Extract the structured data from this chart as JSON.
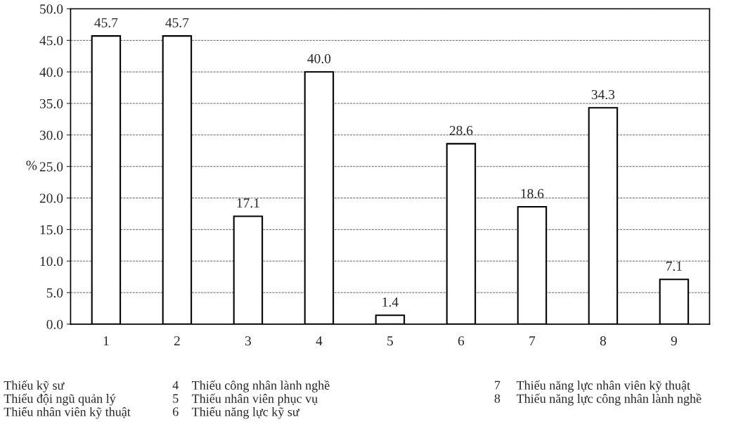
{
  "chart_data": {
    "type": "bar",
    "ylabel": "%",
    "categories": [
      "1",
      "2",
      "3",
      "4",
      "5",
      "6",
      "7",
      "8",
      "9"
    ],
    "values": [
      45.7,
      45.7,
      17.1,
      40.0,
      1.4,
      28.6,
      18.6,
      34.3,
      7.1
    ],
    "value_labels": [
      "45.7",
      "45.7",
      "17.1",
      "40.0",
      "1.4",
      "28.6",
      "18.6",
      "34.3",
      "7.1"
    ],
    "color": "#ffffff",
    "ylim": [
      0,
      50
    ],
    "yticks": [
      {
        "value": 0,
        "label": "0.0"
      },
      {
        "value": 5,
        "label": "5.0"
      },
      {
        "value": 10,
        "label": "10.0"
      },
      {
        "value": 15,
        "label": "15.0"
      },
      {
        "value": 20,
        "label": "20.0"
      },
      {
        "value": 25,
        "label": "25.0"
      },
      {
        "value": 30,
        "label": "30.0"
      },
      {
        "value": 35,
        "label": "35.0"
      },
      {
        "value": 40,
        "label": "40.0"
      },
      {
        "value": 45,
        "label": "45.0"
      },
      {
        "value": 50,
        "label": "50.0"
      }
    ],
    "grid": "y",
    "annotations": [
      "Thiếu kỹ sư",
      "Thiếu đội ngũ quản lý",
      "Thiếu nhân viên kỹ thuật",
      "4",
      "Thiếu công nhân lành nghề",
      "5",
      "Thiếu nhân viên phục vụ",
      "6",
      "Thiếu năng lực kỹ sư",
      "7",
      "Thiếu năng lực nhân viên kỹ thuật",
      "8",
      "Thiếu năng lực công nhân lành nghề"
    ]
  }
}
